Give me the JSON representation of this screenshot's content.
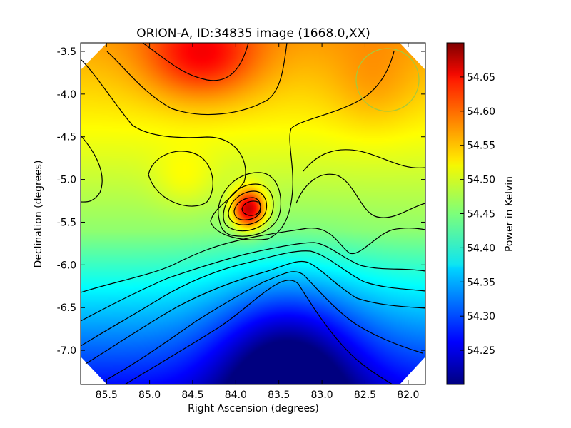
{
  "chart_data": {
    "type": "heatmap",
    "title": "ORION-A, ID:34835 image (1668.0,XX)",
    "xlabel": "Right Ascension (degrees)",
    "ylabel": "Declination (degrees)",
    "colorbar_label": "Power in Kelvin",
    "colormap": "jet",
    "xlim": [
      85.8,
      81.8
    ],
    "ylim": [
      -7.4,
      -3.4
    ],
    "x_ticks": [
      "85.5",
      "85.0",
      "84.5",
      "84.0",
      "83.5",
      "83.0",
      "82.5",
      "82.0"
    ],
    "x_tick_values": [
      85.5,
      85.0,
      84.5,
      84.0,
      83.5,
      83.0,
      82.5,
      82.0
    ],
    "y_ticks": [
      "-3.5",
      "-4.0",
      "-4.5",
      "-5.0",
      "-5.5",
      "-6.0",
      "-6.5",
      "-7.0"
    ],
    "y_tick_values": [
      -3.5,
      -4.0,
      -4.5,
      -5.0,
      -5.5,
      -6.0,
      -6.5,
      -7.0
    ],
    "colorbar_range": [
      54.2,
      54.7
    ],
    "colorbar_ticks": [
      "54.25",
      "54.30",
      "54.35",
      "54.40",
      "54.45",
      "54.50",
      "54.55",
      "54.60",
      "54.65"
    ],
    "colorbar_tick_values": [
      54.25,
      54.3,
      54.35,
      54.4,
      54.45,
      54.5,
      54.55,
      54.6,
      54.65
    ],
    "features": [
      {
        "kind": "peak",
        "ra": 83.85,
        "dec": -5.35,
        "value": 54.7
      },
      {
        "kind": "peak",
        "ra": 84.4,
        "dec": -3.55,
        "value": 54.66
      },
      {
        "kind": "minimum",
        "ra": 83.4,
        "dec": -7.3,
        "value": 54.2
      },
      {
        "kind": "local-max",
        "ra": 84.6,
        "dec": -5.0,
        "value": 54.53
      }
    ],
    "beam_circle": {
      "ra": 82.25,
      "dec": -3.85,
      "radius_deg": 0.36
    },
    "grid": false
  }
}
